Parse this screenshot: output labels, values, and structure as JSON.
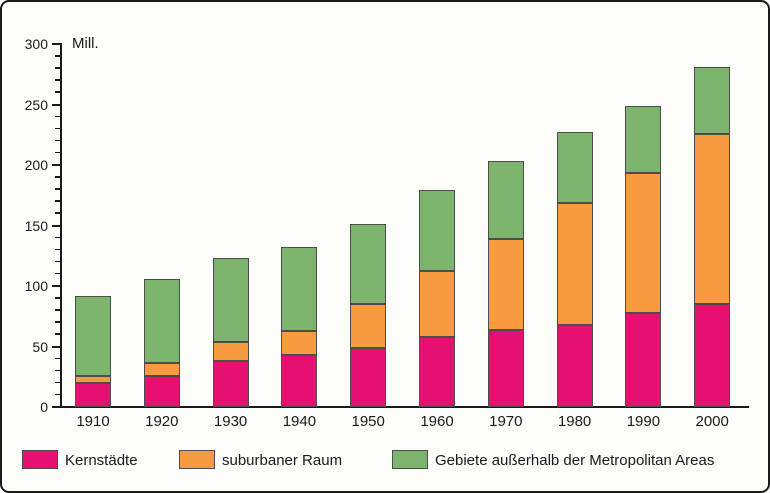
{
  "panel": {
    "background_color": "#fdfdfa",
    "border_color": "#1a1a1a"
  },
  "chart_data": {
    "type": "bar",
    "stacked": true,
    "title": "",
    "unit_label": "Mill.",
    "xlabel": "",
    "ylabel": "Mill.",
    "ylim": [
      0,
      300
    ],
    "y_major_step": 50,
    "y_minor_step": 10,
    "grid": false,
    "legend_position": "bottom",
    "categories": [
      "1910",
      "1920",
      "1930",
      "1940",
      "1950",
      "1960",
      "1970",
      "1980",
      "1990",
      "2000"
    ],
    "series": [
      {
        "name": "Kernstädte",
        "color": "#e5106f",
        "values": [
          20,
          26,
          38,
          43,
          49,
          58,
          64,
          68,
          78,
          85
        ]
      },
      {
        "name": "suburbaner Raum",
        "color": "#f89b40",
        "values": [
          6,
          10,
          16,
          20,
          36,
          54,
          75,
          101,
          115,
          141
        ]
      },
      {
        "name": "Gebiete außerhalb der Metropolitan Areas",
        "color": "#7cb46e",
        "values": [
          66,
          70,
          69,
          69,
          66,
          67,
          64,
          58,
          56,
          55
        ]
      }
    ],
    "totals": [
      92,
      106,
      123,
      132,
      151,
      179,
      203,
      227,
      249,
      281
    ],
    "segment_border_color": "#4d4d4d",
    "axis_color": "#1a1a1a"
  },
  "legend": {
    "items": [
      {
        "label": "Kernstädte",
        "color": "#e5106f"
      },
      {
        "label": "suburbaner Raum",
        "color": "#f89b40"
      },
      {
        "label": "Gebiete außerhalb der Metropolitan Areas",
        "color": "#7cb46e"
      }
    ]
  }
}
